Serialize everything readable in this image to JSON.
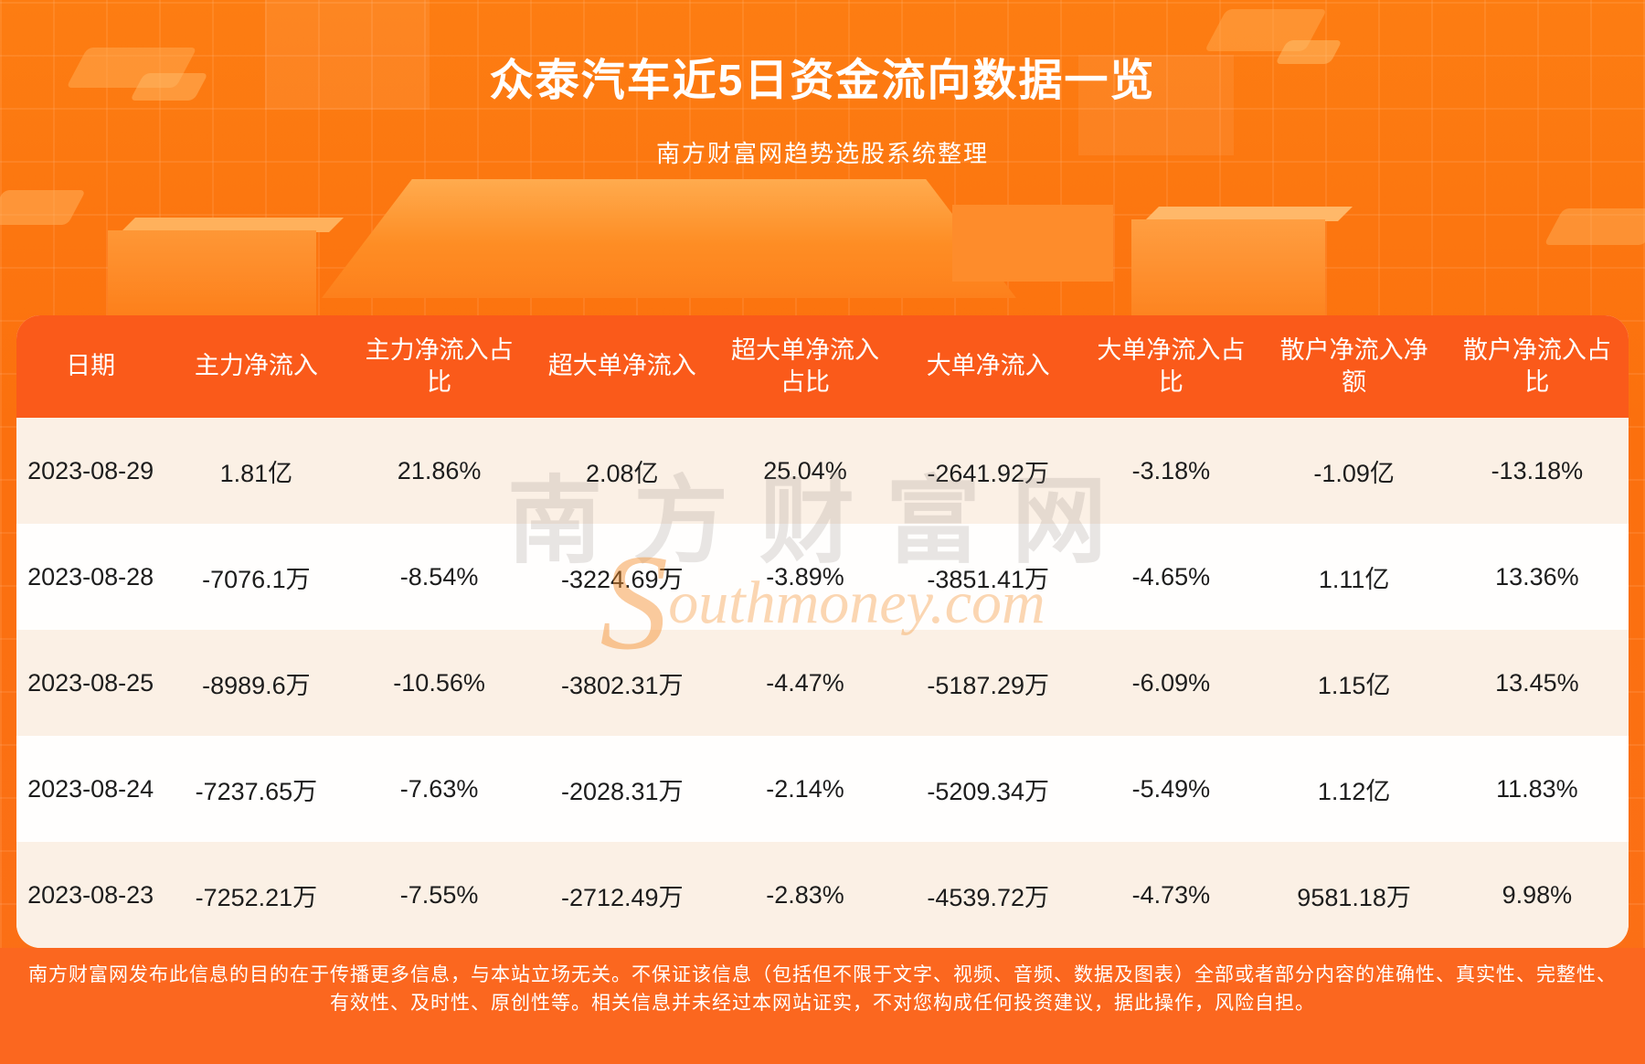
{
  "page": {
    "title": "众泰汽车近5日资金流向数据一览",
    "subtitle": "南方财富网趋势选股系统整理"
  },
  "colors": {
    "background_orange": "#fb700e",
    "header_band": "#fa5a1a",
    "row_cream": "#fbf0e5",
    "row_white": "#fffefd",
    "footer_band": "#fb671f",
    "text_dark": "#1d1d1d",
    "text_white": "#ffffff"
  },
  "watermark": {
    "cn": "南方财富网",
    "en_first_letter": "S",
    "en_rest": "outhmoney.com"
  },
  "chart_data": {
    "type": "table",
    "title": "众泰汽车近5日资金流向数据一览",
    "subtitle": "南方财富网趋势选股系统整理",
    "columns": [
      "日期",
      "主力净流入",
      "主力净流入占比",
      "超大单净流入",
      "超大单净流入占比",
      "大单净流入",
      "大单净流入占比",
      "散户净流入净额",
      "散户净流入占比"
    ],
    "rows": [
      [
        "2023-08-29",
        "1.81亿",
        "21.86%",
        "2.08亿",
        "25.04%",
        "-2641.92万",
        "-3.18%",
        "-1.09亿",
        "-13.18%"
      ],
      [
        "2023-08-28",
        "-7076.1万",
        "-8.54%",
        "-3224.69万",
        "-3.89%",
        "-3851.41万",
        "-4.65%",
        "1.11亿",
        "13.36%"
      ],
      [
        "2023-08-25",
        "-8989.6万",
        "-10.56%",
        "-3802.31万",
        "-4.47%",
        "-5187.29万",
        "-6.09%",
        "1.15亿",
        "13.45%"
      ],
      [
        "2023-08-24",
        "-7237.65万",
        "-7.63%",
        "-2028.31万",
        "-2.14%",
        "-5209.34万",
        "-5.49%",
        "1.12亿",
        "11.83%"
      ],
      [
        "2023-08-23",
        "-7252.21万",
        "-7.55%",
        "-2712.49万",
        "-2.83%",
        "-4539.72万",
        "-4.73%",
        "9581.18万",
        "9.98%"
      ]
    ]
  },
  "footer": {
    "disclaimer": "南方财富网发布此信息的目的在于传播更多信息，与本站立场无关。不保证该信息（包括但不限于文字、视频、音频、数据及图表）全部或者部分内容的准确性、真实性、完整性、有效性、及时性、原创性等。相关信息并未经过本网站证实，不对您构成任何投资建议，据此操作，风险自担。"
  }
}
